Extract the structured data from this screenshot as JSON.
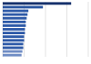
{
  "chart_data": {
    "type": "bar",
    "orientation": "horizontal",
    "categories": [
      null,
      null,
      null,
      null,
      null,
      null,
      null,
      null,
      null,
      null,
      null,
      null,
      null,
      null,
      null
    ],
    "values": [
      80,
      47,
      30,
      29,
      28,
      27,
      27,
      26,
      26,
      25,
      25,
      24,
      24,
      23,
      22
    ],
    "colors": [
      "#15306b",
      "#2a56a0",
      "#2e5aa8",
      "#2e5aa8",
      "#2e5aa8",
      "#2e5aa8",
      "#2e5aa8",
      "#2e5aa8",
      "#2e5aa8",
      "#2e5aa8",
      "#2e5aa8",
      "#2e5aa8",
      "#2e5aa8",
      "#6f8cc4",
      "#6f8cc4"
    ],
    "xlim": [
      0,
      100
    ],
    "xticks": [
      0,
      25,
      50,
      75,
      100
    ],
    "grid": true,
    "tick_labels": false
  }
}
